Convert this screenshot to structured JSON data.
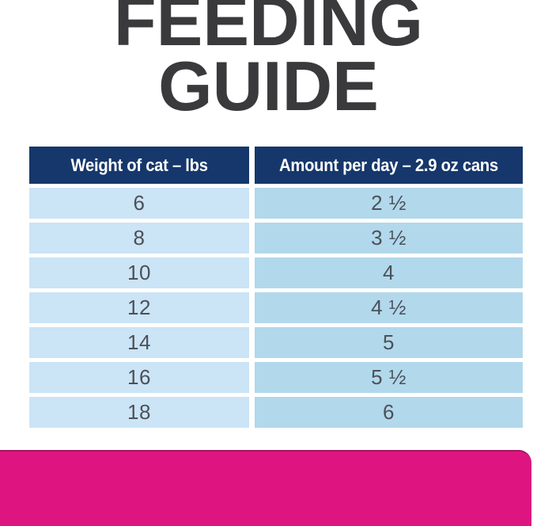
{
  "title": {
    "line1": "FEEDING",
    "line2": "GUIDE"
  },
  "chart_data": {
    "type": "table",
    "title": "FEEDING GUIDE",
    "columns": [
      "Weight of cat – lbs",
      "Amount per day – 2.9 oz cans"
    ],
    "rows": [
      [
        "6",
        "2 ½"
      ],
      [
        "8",
        "3 ½"
      ],
      [
        "10",
        "4"
      ],
      [
        "12",
        "4 ½"
      ],
      [
        "14",
        "5"
      ],
      [
        "16",
        "5 ½"
      ],
      [
        "18",
        "6"
      ]
    ],
    "rows_numeric": {
      "weight_lbs": [
        6,
        8,
        10,
        12,
        14,
        16,
        18
      ],
      "cans_per_day": [
        2.5,
        3.5,
        4,
        4.5,
        5,
        5.5,
        6
      ]
    }
  },
  "colors": {
    "title_text": "#3a3a3c",
    "header_bg": "#16376b",
    "header_text": "#ffffff",
    "weight_col_bg": "#cbe4f6",
    "amount_col_bg": "#b2d8ec",
    "cell_text": "#4b5158",
    "accent_bar": "#de1580",
    "background": "#ffffff"
  }
}
